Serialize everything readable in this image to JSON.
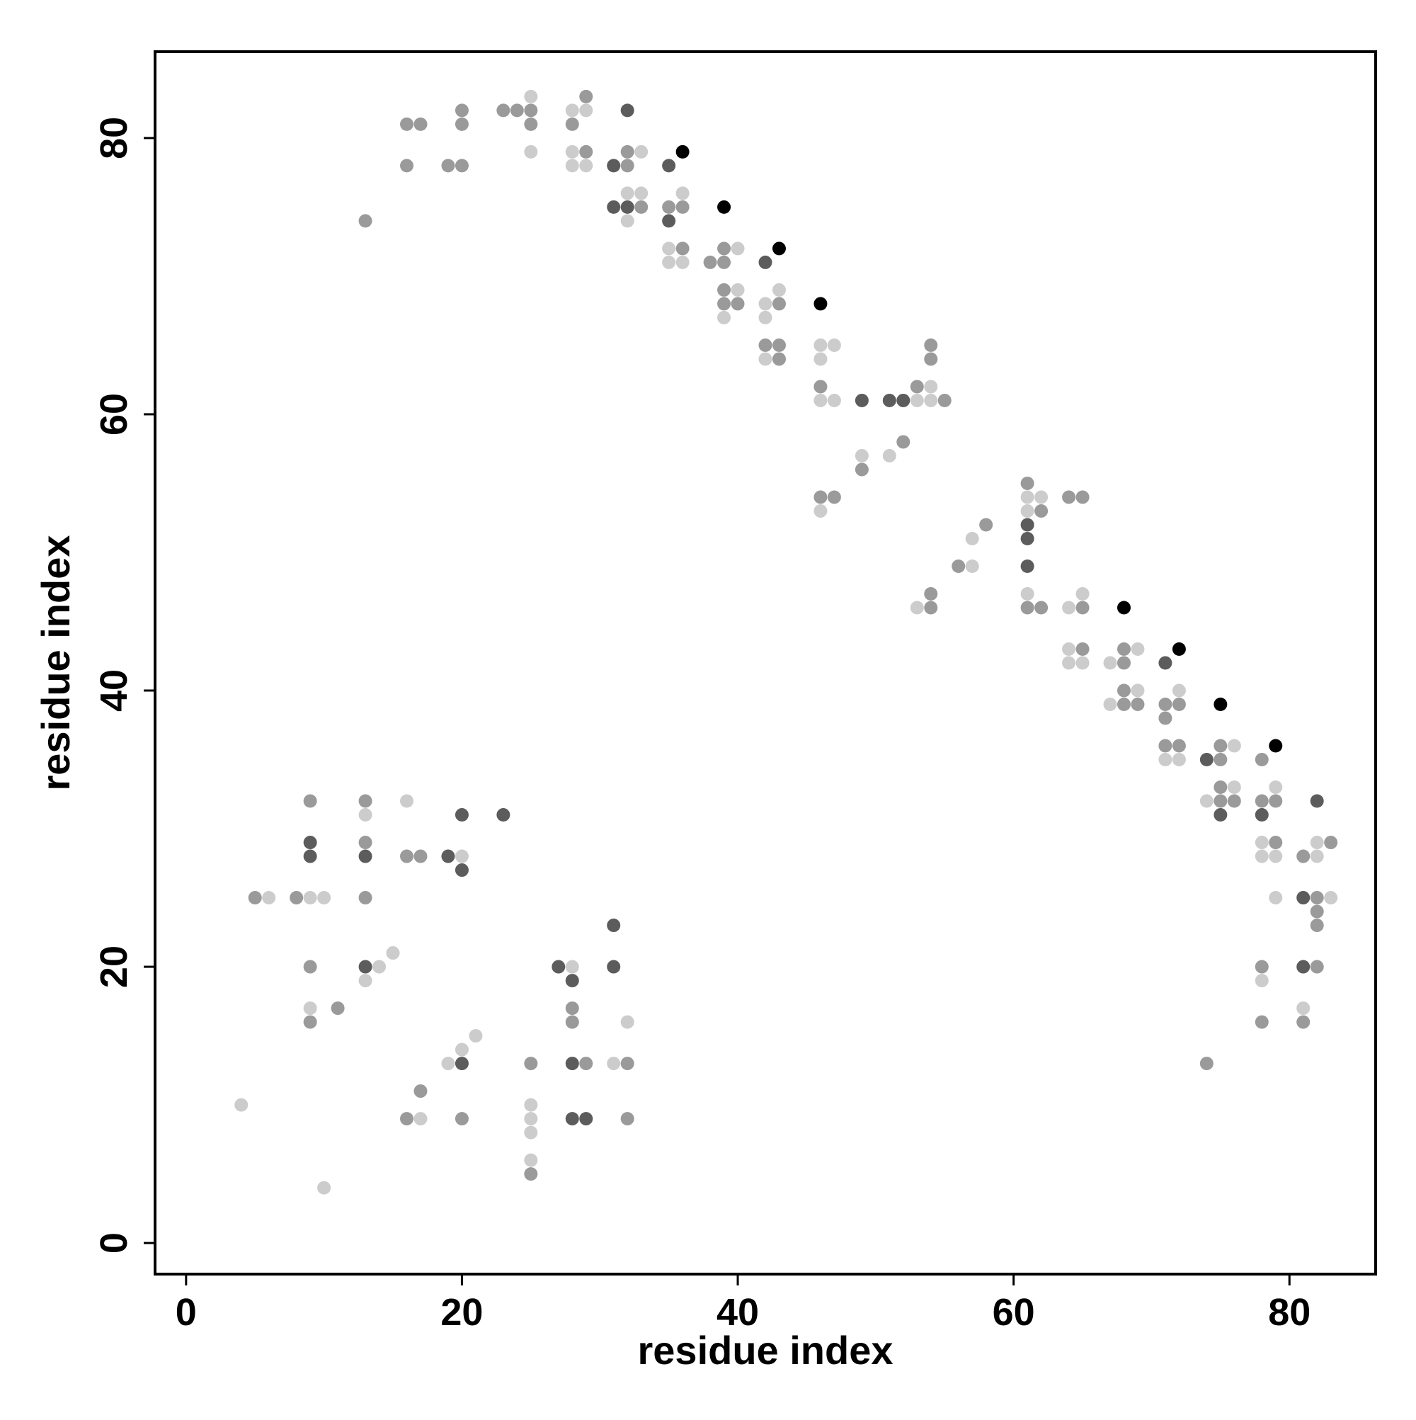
{
  "chart_data": {
    "type": "scatter",
    "xlabel": "residue index",
    "ylabel": "residue index",
    "xlim": [
      -2.25,
      86.25
    ],
    "ylim": [
      -2.25,
      86.25
    ],
    "xticks": [
      0,
      20,
      40,
      60,
      80
    ],
    "yticks": [
      0,
      20,
      40,
      60,
      80
    ],
    "series": [
      {
        "color": "#000000",
        "x": [
          36,
          39,
          43,
          46,
          68,
          72,
          75,
          79
        ],
        "y": [
          79,
          75,
          72,
          68,
          46,
          43,
          39,
          36
        ]
      },
      {
        "color": "#5c5c5c",
        "x": [
          32,
          31,
          35,
          31,
          32,
          35,
          42,
          49,
          51,
          52,
          61,
          61,
          61,
          71,
          74,
          75,
          78,
          82,
          81,
          81,
          9,
          9,
          13,
          19,
          20,
          20,
          23,
          13,
          20,
          27,
          28,
          28,
          28,
          29,
          31,
          31
        ],
        "y": [
          82,
          78,
          78,
          75,
          75,
          74,
          71,
          61,
          61,
          61,
          52,
          51,
          49,
          42,
          35,
          31,
          31,
          32,
          25,
          20,
          29,
          28,
          28,
          28,
          31,
          27,
          31,
          20,
          13,
          20,
          19,
          13,
          9,
          9,
          23,
          20
        ]
      },
      {
        "color": "#9a9a9a",
        "x": [
          13,
          16,
          17,
          16,
          19,
          20,
          20,
          20,
          23,
          24,
          25,
          25,
          28,
          29,
          29,
          32,
          32,
          33,
          35,
          36,
          36,
          38,
          39,
          39,
          39,
          39,
          40,
          43,
          42,
          43,
          43,
          46,
          53,
          55,
          54,
          54,
          49,
          52,
          46,
          47,
          54,
          54,
          56,
          58,
          61,
          62,
          61,
          62,
          64,
          65,
          65,
          65,
          68,
          68,
          68,
          68,
          69,
          71,
          71,
          72,
          71,
          72,
          75,
          75,
          78,
          75,
          75,
          76,
          78,
          79,
          79,
          81,
          83,
          82,
          82,
          82,
          78,
          78,
          82,
          81,
          74,
          9,
          13,
          13,
          16,
          17,
          5,
          8,
          13,
          9,
          9,
          11,
          17,
          16,
          20,
          25,
          25,
          28,
          28,
          29,
          32,
          32
        ],
        "y": [
          74,
          81,
          81,
          78,
          78,
          78,
          82,
          81,
          82,
          82,
          82,
          81,
          81,
          83,
          79,
          79,
          78,
          75,
          75,
          75,
          72,
          71,
          71,
          72,
          69,
          68,
          68,
          68,
          65,
          65,
          64,
          62,
          62,
          61,
          65,
          64,
          56,
          58,
          54,
          54,
          47,
          46,
          49,
          52,
          55,
          53,
          46,
          46,
          54,
          54,
          46,
          43,
          43,
          42,
          40,
          39,
          39,
          39,
          38,
          39,
          36,
          36,
          36,
          35,
          35,
          33,
          32,
          32,
          32,
          32,
          29,
          28,
          29,
          25,
          24,
          23,
          20,
          16,
          20,
          16,
          13,
          32,
          32,
          29,
          28,
          28,
          25,
          25,
          25,
          20,
          16,
          17,
          11,
          9,
          9,
          13,
          5,
          17,
          16,
          13,
          13,
          9
        ]
      },
      {
        "color": "#cccccc",
        "x": [
          25,
          25,
          28,
          29,
          28,
          28,
          29,
          33,
          32,
          33,
          32,
          36,
          35,
          35,
          36,
          40,
          40,
          39,
          42,
          43,
          42,
          42,
          46,
          47,
          46,
          46,
          47,
          53,
          54,
          54,
          49,
          51,
          46,
          53,
          57,
          57,
          61,
          62,
          61,
          61,
          64,
          65,
          64,
          64,
          65,
          67,
          69,
          69,
          67,
          72,
          71,
          72,
          76,
          74,
          76,
          79,
          78,
          78,
          79,
          82,
          82,
          79,
          83,
          78,
          81,
          13,
          16,
          20,
          6,
          9,
          10,
          14,
          13,
          15,
          9,
          4,
          10,
          19,
          20,
          21,
          17,
          25,
          25,
          25,
          25,
          28,
          31,
          32
        ],
        "y": [
          83,
          79,
          82,
          82,
          79,
          78,
          78,
          79,
          76,
          76,
          74,
          76,
          72,
          71,
          71,
          72,
          69,
          67,
          68,
          69,
          67,
          64,
          65,
          65,
          64,
          61,
          61,
          61,
          62,
          61,
          57,
          57,
          53,
          46,
          51,
          49,
          54,
          54,
          53,
          47,
          46,
          47,
          43,
          42,
          42,
          42,
          43,
          40,
          39,
          40,
          35,
          35,
          36,
          32,
          33,
          33,
          29,
          28,
          28,
          29,
          28,
          25,
          25,
          19,
          17,
          31,
          32,
          28,
          25,
          25,
          25,
          20,
          19,
          21,
          17,
          10,
          4,
          13,
          14,
          15,
          9,
          10,
          9,
          8,
          6,
          20,
          13,
          16
        ]
      }
    ]
  }
}
